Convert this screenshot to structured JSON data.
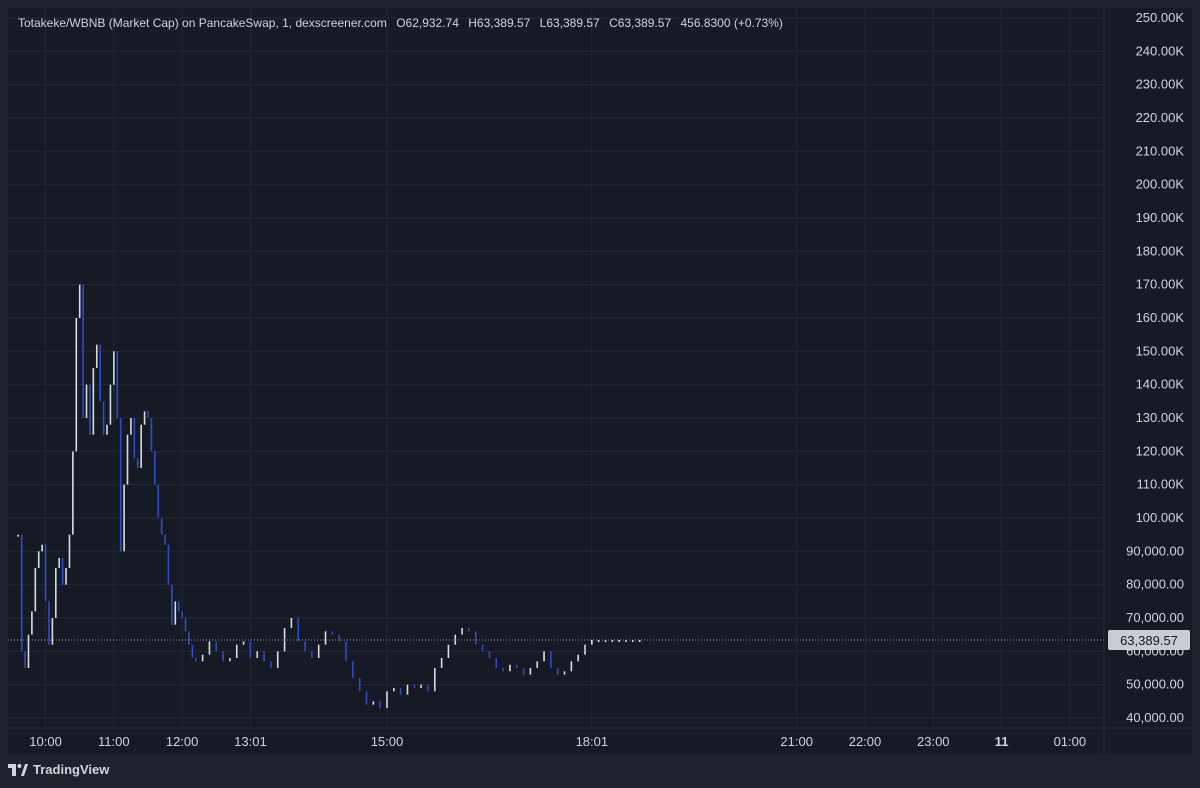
{
  "legend": {
    "symbol": "Totakeke/WBNB (Market Cap) on PancakeSwap, 1, dexscreener.com",
    "open": "O62,932.74",
    "high": "H63,389.57",
    "low": "L63,389.57",
    "close": "C63,389.57",
    "change": "456.8300 (+0.73%)"
  },
  "footer": {
    "brand": "TradingView"
  },
  "colors": {
    "background": "#161a25",
    "grid": "#242836",
    "text": "#d1d4dc",
    "up_candle": "#d9dce3",
    "down_candle": "#2e4cc4",
    "price_line": "#9598a1",
    "price_label_bg": "#c9ccd3",
    "price_label_text": "#131722"
  },
  "chart_data": {
    "type": "line",
    "title": "Totakeke/WBNB (Market Cap) on PancakeSwap, 1, dexscreener.com",
    "y_tick_labels": [
      "250.00K",
      "240.00K",
      "230.00K",
      "220.00K",
      "210.00K",
      "200.00K",
      "190.00K",
      "180.00K",
      "170.00K",
      "160.00K",
      "150.00K",
      "140.00K",
      "130.00K",
      "120.00K",
      "110.00K",
      "100.00K",
      "90,000.00",
      "80,000.00",
      "70,000.00",
      "60,000.00",
      "50,000.00",
      "40,000.00"
    ],
    "y_tick_values": [
      250000,
      240000,
      230000,
      220000,
      210000,
      200000,
      190000,
      180000,
      170000,
      160000,
      150000,
      140000,
      130000,
      120000,
      110000,
      100000,
      90000,
      80000,
      70000,
      60000,
      50000,
      40000
    ],
    "ylim": [
      37000,
      253000
    ],
    "x_tick_labels": [
      "10:00",
      "11:00",
      "12:00",
      "13:01",
      "15:00",
      "18:01",
      "21:00",
      "22:00",
      "23:00",
      "11",
      "01:00"
    ],
    "x_tick_hours": [
      10.0,
      11.0,
      12.0,
      13.0,
      15.0,
      18.0,
      21.0,
      22.0,
      23.0,
      24.0,
      25.0
    ],
    "x_tick_bold": [
      false,
      false,
      false,
      false,
      false,
      false,
      false,
      false,
      false,
      true,
      false
    ],
    "xlim": [
      9.45,
      25.5
    ],
    "grid": true,
    "last_price": 63389.57,
    "last_price_label": "63,389.57",
    "series": [
      {
        "x": [
          9.6,
          9.65,
          9.7,
          9.75,
          9.8,
          9.85,
          9.9,
          9.95,
          10.0,
          10.05,
          10.1,
          10.15,
          10.2,
          10.25,
          10.3,
          10.35,
          10.4,
          10.45,
          10.5,
          10.55,
          10.6,
          10.65,
          10.7,
          10.75,
          10.8,
          10.85,
          10.9,
          10.95,
          11.0,
          11.05,
          11.1,
          11.15,
          11.2,
          11.25,
          11.3,
          11.35,
          11.4,
          11.45,
          11.5,
          11.55,
          11.6,
          11.65,
          11.7,
          11.75,
          11.8,
          11.85,
          11.9,
          11.95,
          12.0,
          12.05,
          12.1,
          12.15,
          12.2,
          12.3,
          12.4,
          12.5,
          12.6,
          12.7,
          12.8,
          12.9,
          13.0,
          13.1,
          13.2,
          13.3,
          13.4,
          13.5,
          13.6,
          13.7,
          13.8,
          13.9,
          14.0,
          14.1,
          14.2,
          14.3,
          14.4,
          14.5,
          14.6,
          14.7,
          14.8,
          14.9,
          15.0,
          15.1,
          15.2,
          15.3,
          15.4,
          15.5,
          15.6,
          15.7,
          15.8,
          15.9,
          16.0,
          16.1,
          16.2,
          16.3,
          16.4,
          16.5,
          16.6,
          16.7,
          16.8,
          16.9,
          17.0,
          17.1,
          17.2,
          17.3,
          17.4,
          17.5,
          17.6,
          17.7,
          17.8,
          17.9,
          18.0,
          18.1,
          18.2,
          18.3,
          18.4,
          18.5,
          18.6,
          18.7
        ],
        "y": [
          95000,
          60000,
          55000,
          65000,
          72000,
          85000,
          90000,
          92000,
          75000,
          62000,
          70000,
          85000,
          88000,
          80000,
          85000,
          95000,
          120000,
          160000,
          170000,
          130000,
          140000,
          125000,
          145000,
          152000,
          135000,
          125000,
          128000,
          140000,
          150000,
          130000,
          90000,
          110000,
          125000,
          130000,
          118000,
          115000,
          128000,
          132000,
          130000,
          120000,
          110000,
          100000,
          95000,
          92000,
          80000,
          68000,
          75000,
          72000,
          70000,
          66000,
          62000,
          58000,
          57000,
          59000,
          63000,
          60000,
          57000,
          58000,
          62000,
          63000,
          58000,
          60000,
          57000,
          55000,
          60000,
          67000,
          70000,
          63000,
          60000,
          58000,
          62000,
          66000,
          65000,
          63000,
          57000,
          52000,
          48000,
          44000,
          45000,
          43000,
          48000,
          49000,
          47000,
          50000,
          49000,
          50000,
          48000,
          55000,
          58000,
          62000,
          65000,
          67000,
          66000,
          62000,
          60000,
          58000,
          55000,
          54000,
          56000,
          55000,
          53000,
          55000,
          57000,
          60000,
          55000,
          53000,
          54000,
          57000,
          59000,
          62000,
          63389.57,
          63389.57,
          63389.57,
          63389.57,
          63389.57,
          63389.57,
          63389.57,
          63389.57
        ]
      }
    ]
  }
}
